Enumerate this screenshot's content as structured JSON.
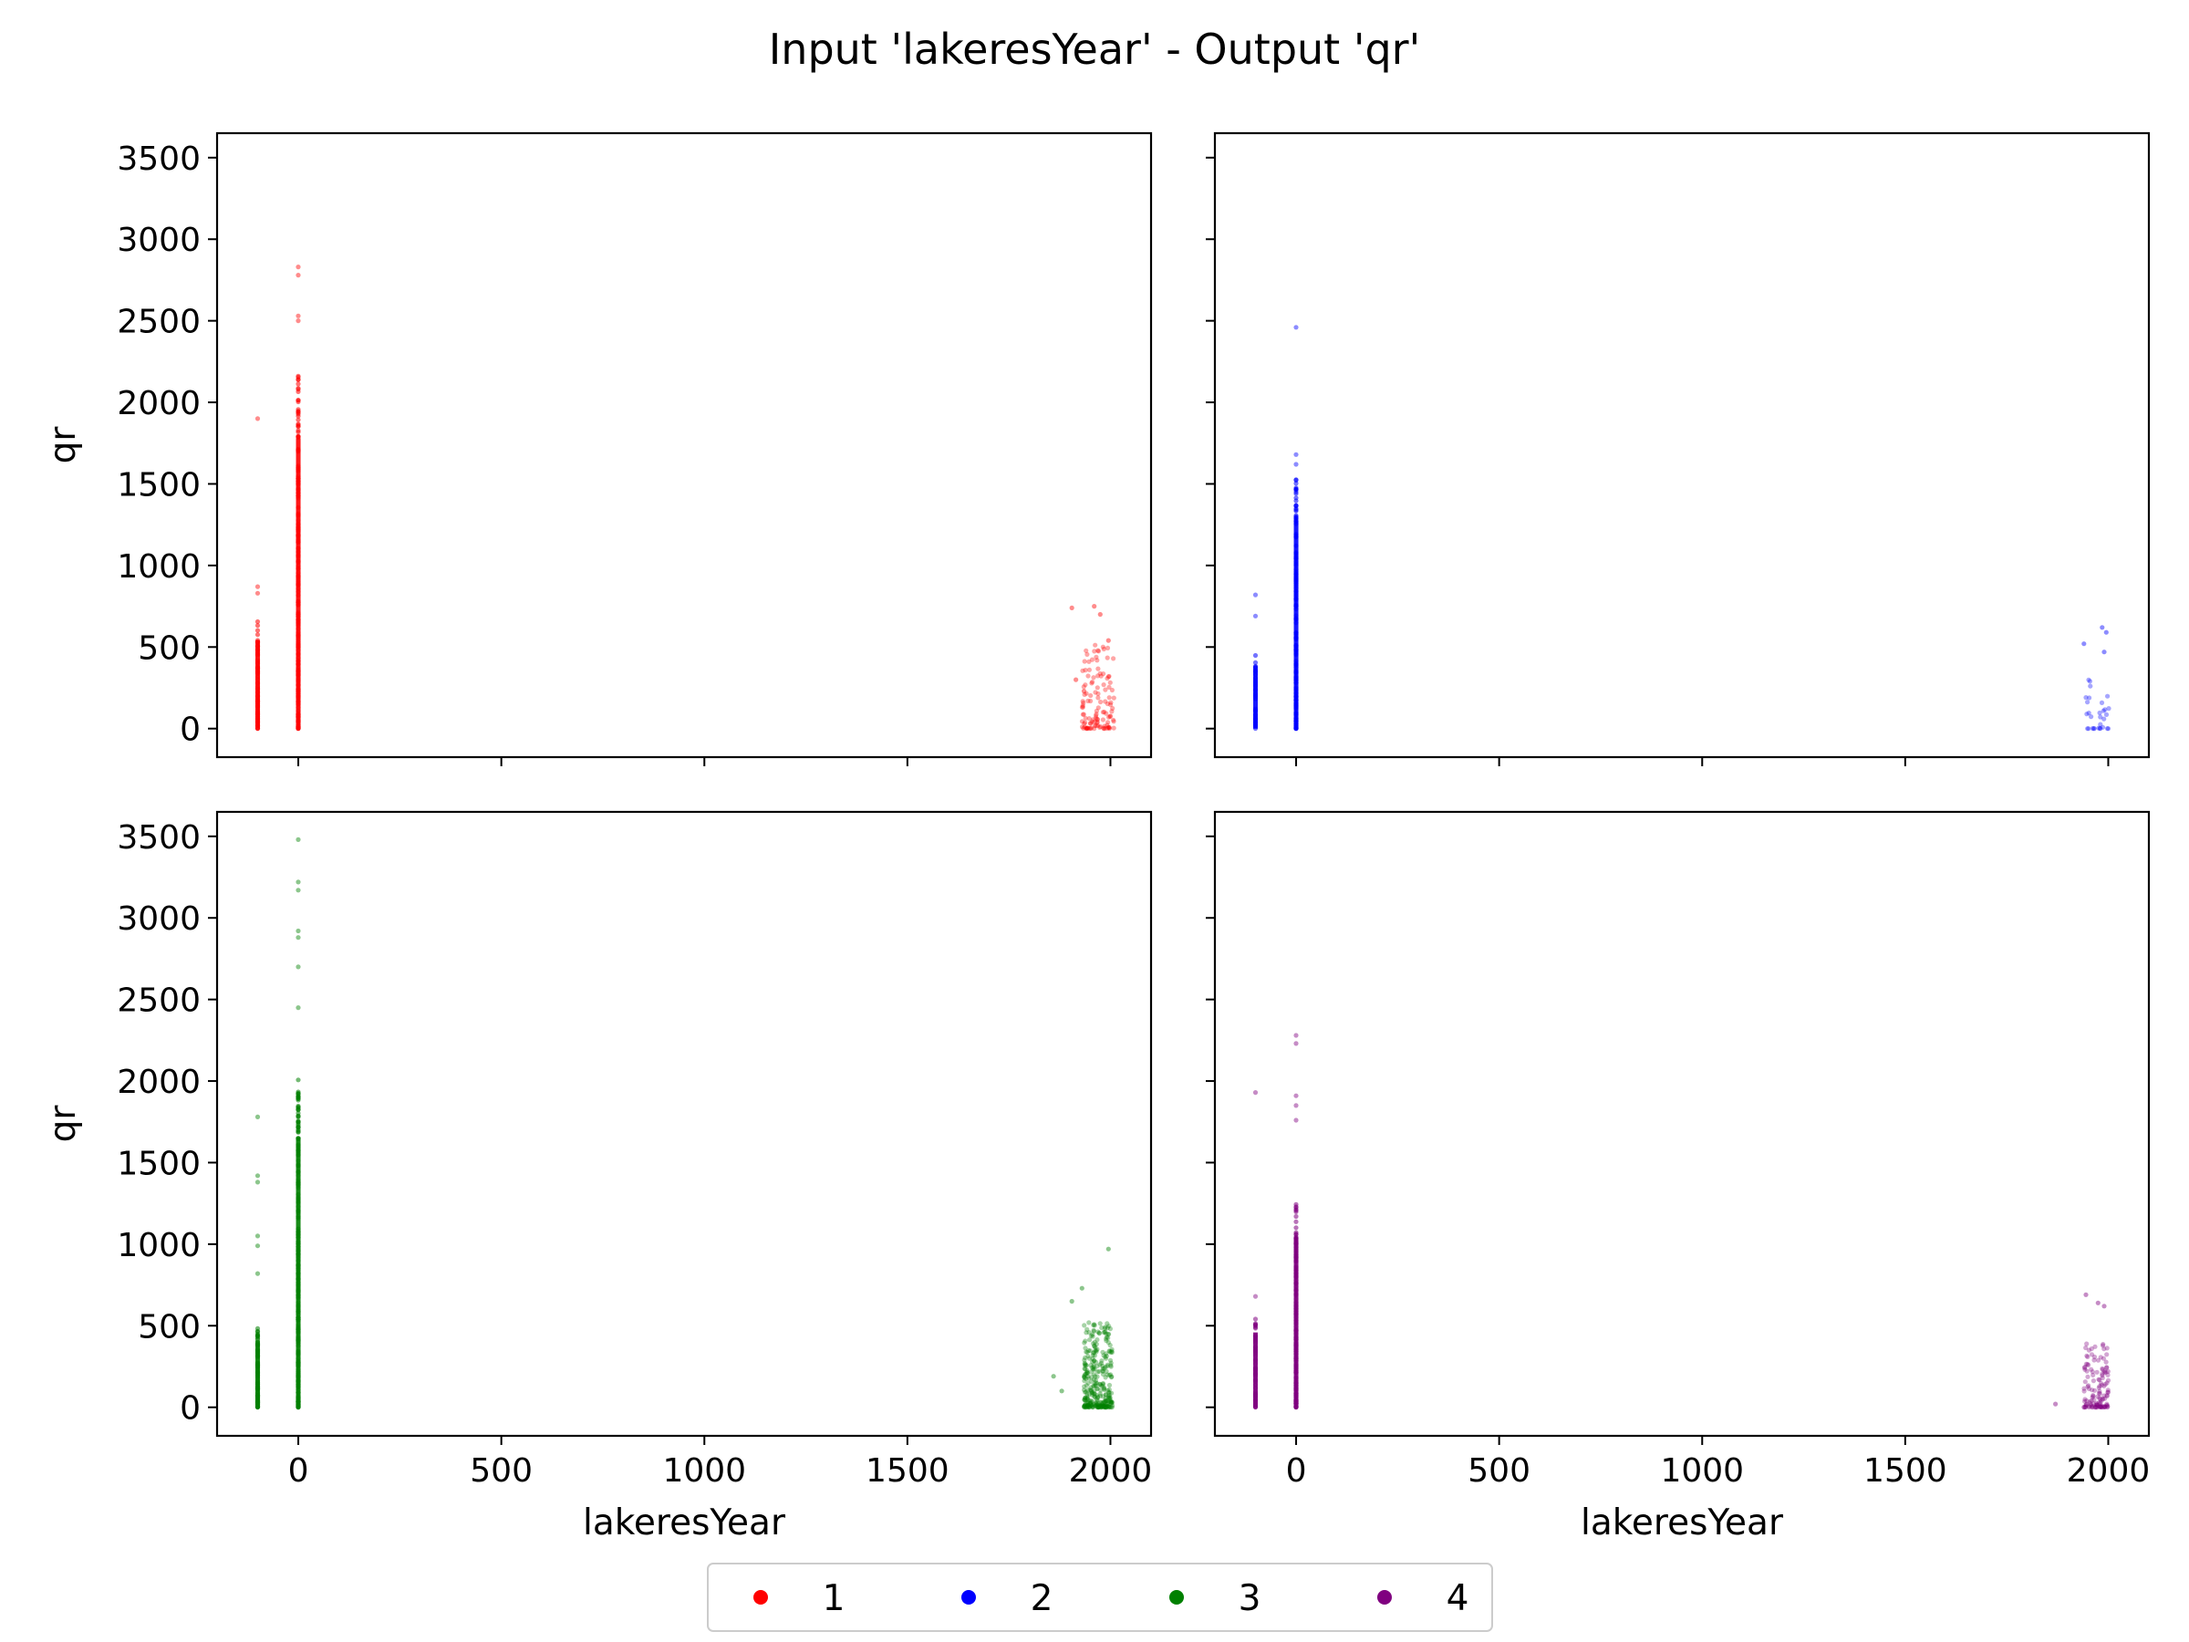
{
  "chart_data": {
    "type": "scatter",
    "title": "Input 'lakeresYear' - Output 'qr'",
    "xlabel": "lakeresYear",
    "ylabel": "qr",
    "xlim": [
      -200,
      2100
    ],
    "ylim": [
      -175,
      3650
    ],
    "xticks": [
      0,
      500,
      1000,
      1500,
      2000
    ],
    "yticks": [
      0,
      500,
      1000,
      1500,
      2000,
      2500,
      3000,
      3500
    ],
    "layout": "2x2 grid, shared x and y axes",
    "legend": {
      "placement": "bottom-center",
      "columns": 4
    },
    "panels": [
      {
        "series": "1",
        "color": "#ff0000",
        "clusters": [
          {
            "x": -100,
            "spread": 0,
            "ymax": 660,
            "n": 80,
            "outliers": [
              [
                -100,
                1900
              ],
              [
                -100,
                870
              ],
              [
                -100,
                830
              ]
            ]
          },
          {
            "x": 0,
            "spread": 0,
            "ymax": 2170,
            "n": 220,
            "outliers": [
              [
                0,
                2830
              ],
              [
                0,
                2780
              ],
              [
                0,
                2530
              ],
              [
                0,
                2500
              ]
            ]
          },
          {
            "x": 1970,
            "spread": 40,
            "ymax": 520,
            "n": 120,
            "outliers": [
              [
                1905,
                740
              ],
              [
                1960,
                750
              ],
              [
                1975,
                700
              ],
              [
                1995,
                540
              ],
              [
                1915,
                300
              ],
              [
                1935,
                230
              ]
            ]
          }
        ]
      },
      {
        "series": "2",
        "color": "#0000ff",
        "clusters": [
          {
            "x": -100,
            "spread": 0,
            "ymax": 450,
            "n": 40,
            "outliers": [
              [
                -100,
                820
              ],
              [
                -100,
                690
              ]
            ]
          },
          {
            "x": 0,
            "spread": 0,
            "ymax": 1550,
            "n": 150,
            "outliers": [
              [
                0,
                2460
              ],
              [
                0,
                1680
              ],
              [
                0,
                1620
              ]
            ]
          },
          {
            "x": 1975,
            "spread": 30,
            "ymax": 380,
            "n": 30,
            "outliers": [
              [
                1985,
                620
              ],
              [
                1995,
                590
              ],
              [
                1940,
                520
              ],
              [
                1990,
                470
              ]
            ]
          }
        ]
      },
      {
        "series": "3",
        "color": "#008000",
        "clusters": [
          {
            "x": -100,
            "spread": 0,
            "ymax": 500,
            "n": 90,
            "outliers": [
              [
                -100,
                1780
              ],
              [
                -100,
                1420
              ],
              [
                -100,
                1380
              ],
              [
                -100,
                1050
              ],
              [
                -100,
                990
              ],
              [
                -100,
                820
              ]
            ]
          },
          {
            "x": 0,
            "spread": 0,
            "ymax": 2020,
            "n": 260,
            "outliers": [
              [
                0,
                3480
              ],
              [
                0,
                3220
              ],
              [
                0,
                3170
              ],
              [
                0,
                2920
              ],
              [
                0,
                2880
              ],
              [
                0,
                2700
              ],
              [
                0,
                2450
              ]
            ]
          },
          {
            "x": 1970,
            "spread": 35,
            "ymax": 520,
            "n": 320,
            "outliers": [
              [
                1995,
                970
              ],
              [
                1930,
                730
              ],
              [
                1860,
                190
              ],
              [
                1880,
                100
              ],
              [
                1905,
                650
              ]
            ]
          }
        ]
      },
      {
        "series": "4",
        "color": "#800080",
        "clusters": [
          {
            "x": -100,
            "spread": 0,
            "ymax": 560,
            "n": 60,
            "outliers": [
              [
                -100,
                1930
              ],
              [
                -100,
                680
              ]
            ]
          },
          {
            "x": 0,
            "spread": 0,
            "ymax": 1250,
            "n": 200,
            "outliers": [
              [
                0,
                2280
              ],
              [
                0,
                2230
              ],
              [
                0,
                1910
              ],
              [
                0,
                1850
              ],
              [
                0,
                1760
              ]
            ]
          },
          {
            "x": 1970,
            "spread": 30,
            "ymax": 400,
            "n": 130,
            "outliers": [
              [
                1945,
                690
              ],
              [
                1975,
                640
              ],
              [
                1990,
                620
              ],
              [
                1870,
                20
              ]
            ]
          }
        ]
      }
    ]
  }
}
